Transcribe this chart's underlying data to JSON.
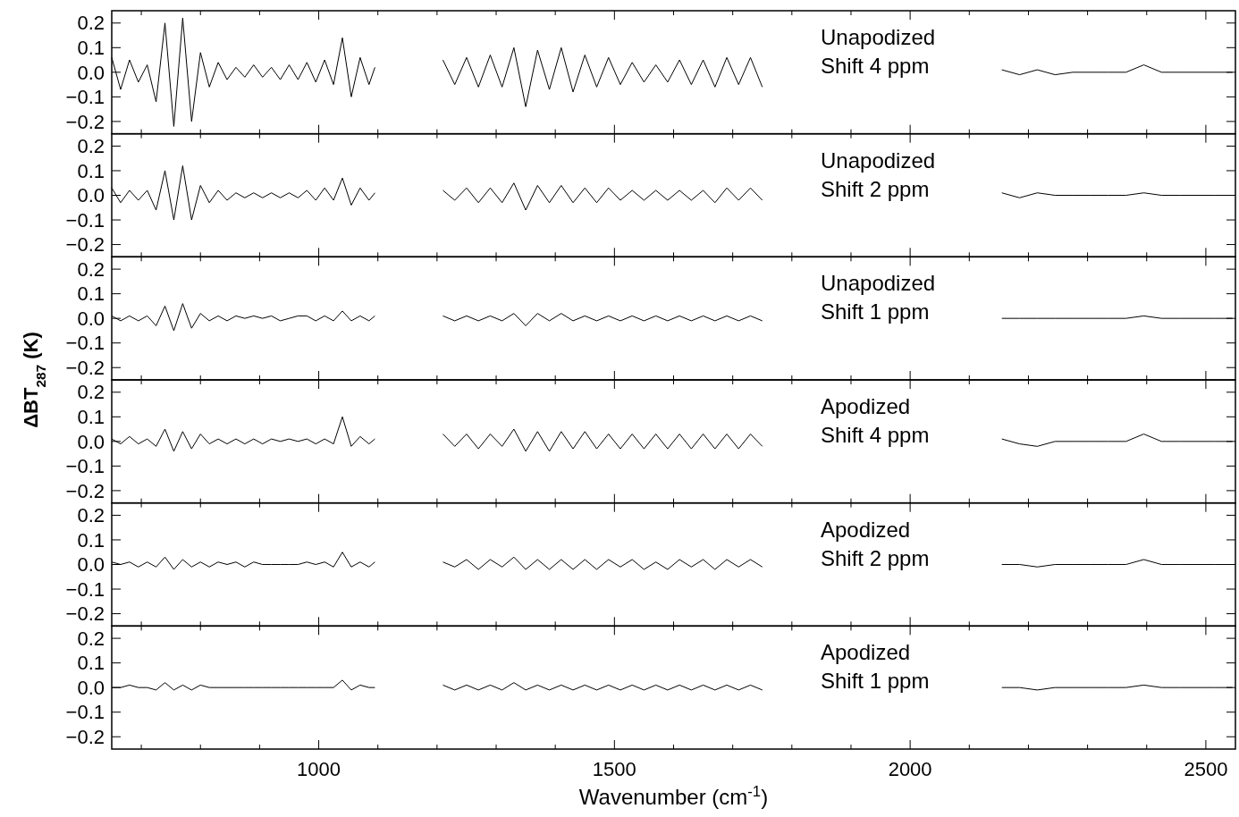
{
  "chart_data": [
    {
      "type": "line",
      "annotations": [
        "Unapodized",
        "Shift 4 ppm"
      ],
      "xlim": [
        650,
        2550
      ],
      "ylim": [
        -0.25,
        0.25
      ],
      "tick_labels": "y",
      "xticks": [
        {
          "value": 700,
          "label": null
        },
        {
          "value": 800,
          "label": null
        },
        {
          "value": 900,
          "label": null
        },
        1000,
        {
          "value": 1100,
          "label": null
        },
        {
          "value": 1200,
          "label": null
        },
        {
          "value": 1300,
          "label": null
        },
        {
          "value": 1400,
          "label": null
        },
        1500,
        {
          "value": 1600,
          "label": null
        },
        {
          "value": 1700,
          "label": null
        },
        {
          "value": 1800,
          "label": null
        },
        {
          "value": 1900,
          "label": null
        },
        2000,
        {
          "value": 2100,
          "label": null
        },
        {
          "value": 2200,
          "label": null
        },
        {
          "value": 2300,
          "label": null
        },
        {
          "value": 2400,
          "label": null
        },
        2500
      ],
      "yticks": [
        {
          "value": -0.2,
          "label": "−0.2"
        },
        {
          "value": -0.1,
          "label": "−0.1"
        },
        {
          "value": 0,
          "label": "0.0"
        },
        {
          "value": 0.1,
          "label": "0.1"
        },
        {
          "value": 0.2,
          "label": "0.2"
        }
      ],
      "series": [
        {
          "color": "#000000",
          "x": [
            650,
            665,
            680,
            695,
            710,
            725,
            740,
            755,
            770,
            785,
            800,
            815,
            830,
            845,
            860,
            875,
            890,
            905,
            920,
            935,
            950,
            965,
            980,
            995,
            1010,
            1025,
            1040,
            1055,
            1070,
            1085,
            1095,
            1150,
            1210,
            1230,
            1250,
            1270,
            1290,
            1310,
            1330,
            1350,
            1370,
            1390,
            1410,
            1430,
            1450,
            1470,
            1490,
            1510,
            1530,
            1550,
            1570,
            1590,
            1610,
            1630,
            1650,
            1670,
            1690,
            1710,
            1730,
            1750,
            1950,
            2155,
            2185,
            2215,
            2245,
            2275,
            2305,
            2335,
            2365,
            2395,
            2425,
            2455,
            2485,
            2515,
            2545
          ],
          "values": [
            0.06,
            -0.07,
            0.05,
            -0.04,
            0.03,
            -0.12,
            0.2,
            -0.22,
            0.22,
            -0.2,
            0.08,
            -0.06,
            0.04,
            -0.03,
            0.02,
            -0.02,
            0.03,
            -0.02,
            0.02,
            -0.03,
            0.03,
            -0.03,
            0.04,
            -0.04,
            0.05,
            -0.05,
            0.14,
            -0.1,
            0.06,
            -0.05,
            0.02,
            null,
            0.05,
            -0.05,
            0.06,
            -0.06,
            0.07,
            -0.06,
            0.1,
            -0.14,
            0.09,
            -0.07,
            0.1,
            -0.08,
            0.07,
            -0.06,
            0.06,
            -0.05,
            0.04,
            -0.04,
            0.03,
            -0.04,
            0.05,
            -0.05,
            0.05,
            -0.06,
            0.06,
            -0.05,
            0.06,
            -0.06,
            null,
            0.01,
            -0.01,
            0.01,
            -0.01,
            0,
            0,
            0,
            0,
            0.03,
            0,
            0,
            0,
            0,
            0
          ]
        }
      ]
    },
    {
      "type": "line",
      "annotations": [
        "Unapodized",
        "Shift 2 ppm"
      ],
      "xlim": [
        650,
        2550
      ],
      "ylim": [
        -0.25,
        0.25
      ],
      "tick_labels": "y",
      "xticks": [
        {
          "value": 700,
          "label": null
        },
        {
          "value": 800,
          "label": null
        },
        {
          "value": 900,
          "label": null
        },
        1000,
        {
          "value": 1100,
          "label": null
        },
        {
          "value": 1200,
          "label": null
        },
        {
          "value": 1300,
          "label": null
        },
        {
          "value": 1400,
          "label": null
        },
        1500,
        {
          "value": 1600,
          "label": null
        },
        {
          "value": 1700,
          "label": null
        },
        {
          "value": 1800,
          "label": null
        },
        {
          "value": 1900,
          "label": null
        },
        2000,
        {
          "value": 2100,
          "label": null
        },
        {
          "value": 2200,
          "label": null
        },
        {
          "value": 2300,
          "label": null
        },
        {
          "value": 2400,
          "label": null
        },
        2500
      ],
      "yticks": [
        {
          "value": -0.2,
          "label": "−0.2"
        },
        {
          "value": -0.1,
          "label": "−0.1"
        },
        {
          "value": 0,
          "label": "0.0"
        },
        {
          "value": 0.1,
          "label": "0.1"
        },
        {
          "value": 0.2,
          "label": "0.2"
        }
      ],
      "series": [
        {
          "color": "#000000",
          "x": [
            650,
            665,
            680,
            695,
            710,
            725,
            740,
            755,
            770,
            785,
            800,
            815,
            830,
            845,
            860,
            875,
            890,
            905,
            920,
            935,
            950,
            965,
            980,
            995,
            1010,
            1025,
            1040,
            1055,
            1070,
            1085,
            1095,
            1150,
            1210,
            1230,
            1250,
            1270,
            1290,
            1310,
            1330,
            1350,
            1370,
            1390,
            1410,
            1430,
            1450,
            1470,
            1490,
            1510,
            1530,
            1550,
            1570,
            1590,
            1610,
            1630,
            1650,
            1670,
            1690,
            1710,
            1730,
            1750,
            1950,
            2155,
            2185,
            2215,
            2245,
            2275,
            2305,
            2335,
            2365,
            2395,
            2425,
            2455,
            2485,
            2515,
            2545
          ],
          "values": [
            0.03,
            -0.03,
            0.02,
            -0.02,
            0.02,
            -0.06,
            0.1,
            -0.1,
            0.12,
            -0.1,
            0.04,
            -0.03,
            0.02,
            -0.02,
            0.01,
            -0.01,
            0.01,
            -0.01,
            0.01,
            -0.01,
            0.01,
            -0.01,
            0.02,
            -0.02,
            0.03,
            -0.02,
            0.07,
            -0.04,
            0.03,
            -0.02,
            0.01,
            null,
            0.02,
            -0.02,
            0.03,
            -0.03,
            0.03,
            -0.03,
            0.05,
            -0.06,
            0.04,
            -0.03,
            0.04,
            -0.03,
            0.03,
            -0.03,
            0.03,
            -0.02,
            0.02,
            -0.02,
            0.02,
            -0.02,
            0.02,
            -0.02,
            0.02,
            -0.03,
            0.03,
            -0.02,
            0.03,
            -0.02,
            null,
            0.01,
            -0.01,
            0.01,
            0,
            0,
            0,
            0,
            0,
            0.01,
            0,
            0,
            0,
            0,
            0
          ]
        }
      ]
    },
    {
      "type": "line",
      "annotations": [
        "Unapodized",
        "Shift 1 ppm"
      ],
      "xlim": [
        650,
        2550
      ],
      "ylim": [
        -0.25,
        0.25
      ],
      "tick_labels": "y",
      "xticks": [
        {
          "value": 700,
          "label": null
        },
        {
          "value": 800,
          "label": null
        },
        {
          "value": 900,
          "label": null
        },
        1000,
        {
          "value": 1100,
          "label": null
        },
        {
          "value": 1200,
          "label": null
        },
        {
          "value": 1300,
          "label": null
        },
        {
          "value": 1400,
          "label": null
        },
        1500,
        {
          "value": 1600,
          "label": null
        },
        {
          "value": 1700,
          "label": null
        },
        {
          "value": 1800,
          "label": null
        },
        {
          "value": 1900,
          "label": null
        },
        2000,
        {
          "value": 2100,
          "label": null
        },
        {
          "value": 2200,
          "label": null
        },
        {
          "value": 2300,
          "label": null
        },
        {
          "value": 2400,
          "label": null
        },
        2500
      ],
      "yticks": [
        {
          "value": -0.2,
          "label": "−0.2"
        },
        {
          "value": -0.1,
          "label": "−0.1"
        },
        {
          "value": 0,
          "label": "0.0"
        },
        {
          "value": 0.1,
          "label": "0.1"
        },
        {
          "value": 0.2,
          "label": "0.2"
        }
      ],
      "series": [
        {
          "color": "#000000",
          "x": [
            650,
            665,
            680,
            695,
            710,
            725,
            740,
            755,
            770,
            785,
            800,
            815,
            830,
            845,
            860,
            875,
            890,
            905,
            920,
            935,
            950,
            965,
            980,
            995,
            1010,
            1025,
            1040,
            1055,
            1070,
            1085,
            1095,
            1150,
            1210,
            1230,
            1250,
            1270,
            1290,
            1310,
            1330,
            1350,
            1370,
            1390,
            1410,
            1430,
            1450,
            1470,
            1490,
            1510,
            1530,
            1550,
            1570,
            1590,
            1610,
            1630,
            1650,
            1670,
            1690,
            1710,
            1730,
            1750,
            1950,
            2155,
            2185,
            2215,
            2245,
            2275,
            2305,
            2335,
            2365,
            2395,
            2425,
            2455,
            2485,
            2515,
            2545
          ],
          "values": [
            0.01,
            -0.01,
            0.01,
            -0.01,
            0.01,
            -0.03,
            0.05,
            -0.05,
            0.06,
            -0.04,
            0.02,
            -0.01,
            0.01,
            -0.01,
            0.01,
            0,
            0.01,
            0,
            0.01,
            -0.01,
            0,
            0.01,
            0.01,
            -0.01,
            0.01,
            -0.01,
            0.03,
            -0.01,
            0.01,
            -0.01,
            0.01,
            null,
            0.01,
            -0.01,
            0.01,
            -0.01,
            0.01,
            -0.01,
            0.02,
            -0.03,
            0.02,
            -0.01,
            0.02,
            -0.01,
            0.01,
            -0.01,
            0.01,
            -0.01,
            0.01,
            -0.01,
            0.01,
            -0.01,
            0.01,
            -0.01,
            0.01,
            -0.01,
            0.01,
            -0.01,
            0.01,
            -0.01,
            null,
            0,
            0,
            0,
            0,
            0,
            0,
            0,
            0,
            0.01,
            0,
            0,
            0,
            0,
            0
          ]
        }
      ]
    },
    {
      "type": "line",
      "annotations": [
        "Apodized",
        "Shift 4 ppm"
      ],
      "ylabel": "ΔBT$_{287}$ (K)",
      "xlim": [
        650,
        2550
      ],
      "ylim": [
        -0.25,
        0.25
      ],
      "tick_labels": "y",
      "xticks": [
        {
          "value": 700,
          "label": null
        },
        {
          "value": 800,
          "label": null
        },
        {
          "value": 900,
          "label": null
        },
        1000,
        {
          "value": 1100,
          "label": null
        },
        {
          "value": 1200,
          "label": null
        },
        {
          "value": 1300,
          "label": null
        },
        {
          "value": 1400,
          "label": null
        },
        1500,
        {
          "value": 1600,
          "label": null
        },
        {
          "value": 1700,
          "label": null
        },
        {
          "value": 1800,
          "label": null
        },
        {
          "value": 1900,
          "label": null
        },
        2000,
        {
          "value": 2100,
          "label": null
        },
        {
          "value": 2200,
          "label": null
        },
        {
          "value": 2300,
          "label": null
        },
        {
          "value": 2400,
          "label": null
        },
        2500
      ],
      "yticks": [
        {
          "value": -0.2,
          "label": "−0.2"
        },
        {
          "value": -0.1,
          "label": "−0.1"
        },
        {
          "value": 0,
          "label": "0.0"
        },
        {
          "value": 0.1,
          "label": "0.1"
        },
        {
          "value": 0.2,
          "label": "0.2"
        }
      ],
      "series": [
        {
          "color": "#000000",
          "x": [
            650,
            665,
            680,
            695,
            710,
            725,
            740,
            755,
            770,
            785,
            800,
            815,
            830,
            845,
            860,
            875,
            890,
            905,
            920,
            935,
            950,
            965,
            980,
            995,
            1010,
            1025,
            1040,
            1055,
            1070,
            1085,
            1095,
            1150,
            1210,
            1230,
            1250,
            1270,
            1290,
            1310,
            1330,
            1350,
            1370,
            1390,
            1410,
            1430,
            1450,
            1470,
            1490,
            1510,
            1530,
            1550,
            1570,
            1590,
            1610,
            1630,
            1650,
            1670,
            1690,
            1710,
            1730,
            1750,
            1950,
            2155,
            2185,
            2215,
            2245,
            2275,
            2305,
            2335,
            2365,
            2395,
            2425,
            2455,
            2485,
            2515,
            2545
          ],
          "values": [
            0.01,
            -0.01,
            0.02,
            -0.01,
            0.01,
            -0.02,
            0.05,
            -0.04,
            0.04,
            -0.03,
            0.03,
            -0.01,
            0.01,
            -0.01,
            0.01,
            -0.01,
            0.01,
            -0.01,
            0.01,
            0,
            0.01,
            0,
            0.01,
            -0.01,
            0.01,
            -0.01,
            0.1,
            -0.02,
            0.02,
            -0.01,
            0.01,
            null,
            0.03,
            -0.02,
            0.03,
            -0.03,
            0.03,
            -0.02,
            0.05,
            -0.04,
            0.04,
            -0.04,
            0.04,
            -0.03,
            0.04,
            -0.03,
            0.03,
            -0.03,
            0.03,
            -0.03,
            0.03,
            -0.03,
            0.03,
            -0.03,
            0.03,
            -0.03,
            0.03,
            -0.03,
            0.03,
            -0.02,
            null,
            0.01,
            -0.01,
            -0.02,
            0,
            0,
            0,
            0,
            0,
            0.03,
            0,
            0,
            0,
            0,
            0
          ]
        }
      ]
    },
    {
      "type": "line",
      "annotations": [
        "Apodized",
        "Shift 2 ppm"
      ],
      "xlim": [
        650,
        2550
      ],
      "ylim": [
        -0.25,
        0.25
      ],
      "tick_labels": "y",
      "xticks": [
        {
          "value": 700,
          "label": null
        },
        {
          "value": 800,
          "label": null
        },
        {
          "value": 900,
          "label": null
        },
        1000,
        {
          "value": 1100,
          "label": null
        },
        {
          "value": 1200,
          "label": null
        },
        {
          "value": 1300,
          "label": null
        },
        {
          "value": 1400,
          "label": null
        },
        1500,
        {
          "value": 1600,
          "label": null
        },
        {
          "value": 1700,
          "label": null
        },
        {
          "value": 1800,
          "label": null
        },
        {
          "value": 1900,
          "label": null
        },
        2000,
        {
          "value": 2100,
          "label": null
        },
        {
          "value": 2200,
          "label": null
        },
        {
          "value": 2300,
          "label": null
        },
        {
          "value": 2400,
          "label": null
        },
        2500
      ],
      "yticks": [
        {
          "value": -0.2,
          "label": "−0.2"
        },
        {
          "value": -0.1,
          "label": "−0.1"
        },
        {
          "value": 0,
          "label": "0.0"
        },
        {
          "value": 0.1,
          "label": "0.1"
        },
        {
          "value": 0.2,
          "label": "0.2"
        }
      ],
      "series": [
        {
          "color": "#000000",
          "x": [
            650,
            665,
            680,
            695,
            710,
            725,
            740,
            755,
            770,
            785,
            800,
            815,
            830,
            845,
            860,
            875,
            890,
            905,
            920,
            935,
            950,
            965,
            980,
            995,
            1010,
            1025,
            1040,
            1055,
            1070,
            1085,
            1095,
            1150,
            1210,
            1230,
            1250,
            1270,
            1290,
            1310,
            1330,
            1350,
            1370,
            1390,
            1410,
            1430,
            1450,
            1470,
            1490,
            1510,
            1530,
            1550,
            1570,
            1590,
            1610,
            1630,
            1650,
            1670,
            1690,
            1710,
            1730,
            1750,
            1950,
            2155,
            2185,
            2215,
            2245,
            2275,
            2305,
            2335,
            2365,
            2395,
            2425,
            2455,
            2485,
            2515,
            2545
          ],
          "values": [
            0.01,
            0,
            0.01,
            -0.01,
            0.01,
            -0.01,
            0.03,
            -0.02,
            0.02,
            -0.01,
            0.01,
            -0.01,
            0.01,
            0,
            0.01,
            -0.01,
            0.01,
            0,
            0,
            0,
            0,
            0,
            0.01,
            0,
            0.01,
            -0.01,
            0.05,
            -0.01,
            0.01,
            -0.01,
            0.01,
            null,
            0.01,
            -0.01,
            0.02,
            -0.02,
            0.02,
            -0.01,
            0.03,
            -0.02,
            0.02,
            -0.02,
            0.02,
            -0.02,
            0.02,
            -0.02,
            0.02,
            -0.01,
            0.02,
            -0.02,
            0.01,
            -0.02,
            0.02,
            -0.01,
            0.02,
            -0.02,
            0.02,
            -0.01,
            0.02,
            -0.01,
            null,
            0,
            0,
            -0.01,
            0,
            0,
            0,
            0,
            0,
            0.02,
            0,
            0,
            0,
            0,
            0
          ]
        }
      ]
    },
    {
      "type": "line",
      "annotations": [
        "Apodized",
        "Shift 1 ppm"
      ],
      "xlabel": "Wavenumber (cm$^{-1}$)",
      "xlim": [
        650,
        2550
      ],
      "ylim": [
        -0.25,
        0.25
      ],
      "xticks": [
        {
          "value": 700,
          "label": null
        },
        {
          "value": 800,
          "label": null
        },
        {
          "value": 900,
          "label": null
        },
        1000,
        {
          "value": 1100,
          "label": null
        },
        {
          "value": 1200,
          "label": null
        },
        {
          "value": 1300,
          "label": null
        },
        {
          "value": 1400,
          "label": null
        },
        1500,
        {
          "value": 1600,
          "label": null
        },
        {
          "value": 1700,
          "label": null
        },
        {
          "value": 1800,
          "label": null
        },
        {
          "value": 1900,
          "label": null
        },
        2000,
        {
          "value": 2100,
          "label": null
        },
        {
          "value": 2200,
          "label": null
        },
        {
          "value": 2300,
          "label": null
        },
        {
          "value": 2400,
          "label": null
        },
        2500
      ],
      "yticks": [
        {
          "value": -0.2,
          "label": "−0.2"
        },
        {
          "value": -0.1,
          "label": "−0.1"
        },
        {
          "value": 0,
          "label": "0.0"
        },
        {
          "value": 0.1,
          "label": "0.1"
        },
        {
          "value": 0.2,
          "label": "0.2"
        }
      ],
      "series": [
        {
          "color": "#000000",
          "x": [
            650,
            665,
            680,
            695,
            710,
            725,
            740,
            755,
            770,
            785,
            800,
            815,
            830,
            845,
            860,
            875,
            890,
            905,
            920,
            935,
            950,
            965,
            980,
            995,
            1010,
            1025,
            1040,
            1055,
            1070,
            1085,
            1095,
            1150,
            1210,
            1230,
            1250,
            1270,
            1290,
            1310,
            1330,
            1350,
            1370,
            1390,
            1410,
            1430,
            1450,
            1470,
            1490,
            1510,
            1530,
            1550,
            1570,
            1590,
            1610,
            1630,
            1650,
            1670,
            1690,
            1710,
            1730,
            1750,
            1950,
            2155,
            2185,
            2215,
            2245,
            2275,
            2305,
            2335,
            2365,
            2395,
            2425,
            2455,
            2485,
            2515,
            2545
          ],
          "values": [
            0,
            0,
            0.01,
            0,
            0,
            -0.01,
            0.02,
            -0.01,
            0.01,
            -0.01,
            0.01,
            0,
            0,
            0,
            0,
            0,
            0,
            0,
            0,
            0,
            0,
            0,
            0,
            0,
            0,
            0,
            0.03,
            -0.01,
            0.01,
            0,
            0,
            null,
            0.01,
            -0.01,
            0.01,
            -0.01,
            0.01,
            -0.01,
            0.02,
            -0.01,
            0.01,
            -0.01,
            0.01,
            -0.01,
            0.01,
            -0.01,
            0.01,
            -0.01,
            0.01,
            -0.01,
            0.01,
            -0.01,
            0.01,
            -0.01,
            0.01,
            -0.01,
            0.01,
            -0.01,
            0.01,
            -0.01,
            null,
            0,
            0,
            -0.01,
            0,
            0,
            0,
            0,
            0,
            0.01,
            0,
            0,
            0,
            0,
            0
          ]
        }
      ]
    }
  ]
}
